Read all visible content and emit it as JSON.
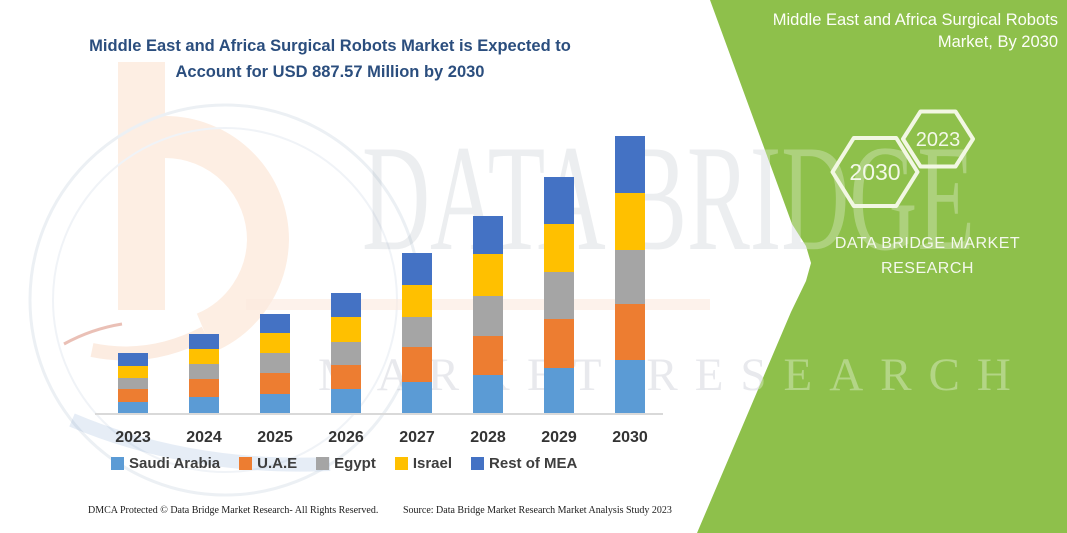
{
  "header": {
    "line1": "Middle East and Africa Surgical Robots Market is Expected to",
    "line2": "Account for USD 887.57 Million by 2030"
  },
  "watermark": {
    "row1": "DATA BRIDGE",
    "row2": "MARKET RESEARCH"
  },
  "side_panel": {
    "heading": "Middle East and Africa Surgical Robots Market, By 2030",
    "hexagons": [
      "2030",
      "2023"
    ],
    "brand_line1": "DATA BRIDGE MARKET",
    "brand_line2": "RESEARCH",
    "bg_color": "#8EC04B"
  },
  "footer": {
    "left": "DMCA Protected © Data Bridge Market Research-  All Rights Reserved.",
    "right": "Source: Data Bridge Market Research  Market Analysis Study 2023"
  },
  "chart_data": {
    "type": "bar",
    "stacked": true,
    "title": "Middle East and Africa Surgical Robots Market is Expected to Account for USD 887.57 Million by 2030",
    "units": "USD Million",
    "value_annotation": "USD 887.57 Million by 2030 (total of 2030 bar; other values estimated from bar heights)",
    "categories": [
      "2023",
      "2024",
      "2025",
      "2026",
      "2027",
      "2028",
      "2029",
      "2030"
    ],
    "series": [
      {
        "name": "Saudi Arabia",
        "color": "#5B9BD5",
        "values": [
          37,
          50,
          61,
          77,
          98,
          123,
          144,
          171
        ]
      },
      {
        "name": "U.A.E",
        "color": "#ED7D31",
        "values": [
          39,
          59,
          67,
          77,
          112,
          123,
          158,
          178
        ]
      },
      {
        "name": "Egypt",
        "color": "#A5A5A5",
        "values": [
          37,
          48,
          64,
          73,
          98,
          128,
          150,
          174
        ]
      },
      {
        "name": "Israel",
        "color": "#FFC000",
        "values": [
          39,
          48,
          63,
          82,
          102,
          136,
          154,
          182
        ]
      },
      {
        "name": "Rest of MEA",
        "color": "#4472C4",
        "values": [
          41,
          49,
          62,
          75,
          102,
          121,
          151,
          182.57
        ]
      }
    ],
    "totals": [
      193,
      254,
      317,
      384,
      512,
      631,
      757,
      887.57
    ],
    "xlabel": "",
    "ylabel": "",
    "ylim": [
      0,
      900
    ],
    "gridlines": false,
    "value_axis_shown": false,
    "legend_position": "bottom"
  }
}
